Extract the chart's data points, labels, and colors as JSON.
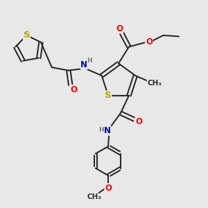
{
  "bg_color": "#e8e8e8",
  "bond_color": "#2a2a2a",
  "bond_width": 1.5,
  "atom_colors": {
    "S": "#b8a000",
    "O": "#ff0000",
    "N": "#0000cc",
    "H": "#777777",
    "C": "#2a2a2a"
  },
  "font_size": 8.5,
  "xlim": [
    0,
    10
  ],
  "ylim": [
    0,
    10
  ]
}
